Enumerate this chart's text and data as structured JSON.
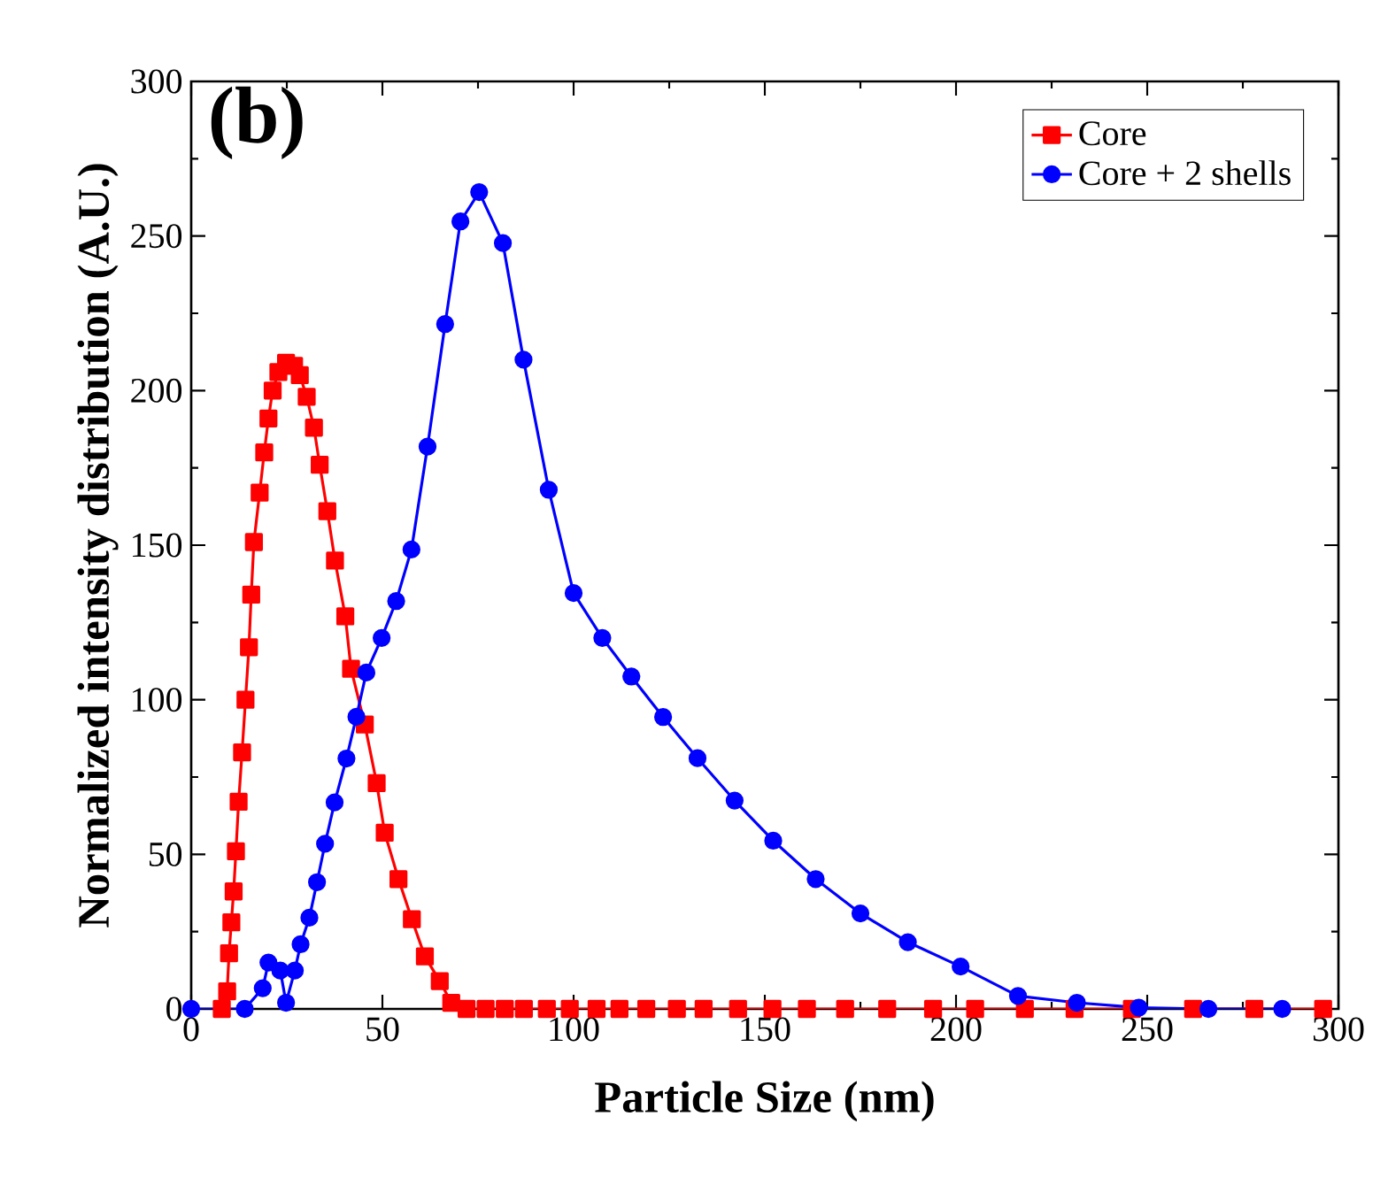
{
  "chart_data": {
    "type": "line",
    "xlabel": "Particle Size (nm)",
    "ylabel": "Normalized intensity distribution (A.U.)",
    "annotations": [
      "(b)"
    ],
    "xlim": [
      0,
      300
    ],
    "ylim": [
      0,
      300
    ],
    "xticks": [
      0,
      50,
      100,
      150,
      200,
      250,
      300
    ],
    "yticks": [
      0,
      50,
      100,
      150,
      200,
      250,
      300
    ],
    "legend": "top right",
    "line_style": "solid",
    "series": [
      {
        "name": "Core",
        "color": "#ff0000",
        "marker": "square",
        "x": [
          8,
          9.4,
          9.9,
          10.5,
          11.1,
          11.7,
          12.4,
          13.3,
          14.2,
          15.1,
          15.7,
          16.4,
          17.9,
          19.1,
          20.2,
          21.3,
          22.8,
          24.8,
          26.9,
          28.4,
          30.2,
          32.1,
          33.6,
          35.6,
          37.6,
          40.3,
          41.8,
          45.4,
          48.5,
          50.6,
          54.2,
          57.7,
          61.1,
          65,
          68,
          72,
          77,
          82,
          87,
          93,
          99,
          106,
          112,
          119,
          127,
          134,
          143,
          152,
          161,
          171,
          182,
          194,
          205,
          218,
          231,
          246,
          262,
          278,
          296
        ],
        "values": [
          0,
          5.7,
          18,
          28,
          38,
          51,
          67,
          83,
          100,
          117,
          134,
          151,
          167,
          180,
          191,
          200,
          206,
          209,
          208,
          205,
          198,
          188,
          176,
          161,
          145,
          127,
          110,
          92,
          73,
          57,
          42,
          29,
          17,
          9,
          2,
          0,
          0,
          0,
          0,
          0,
          0,
          0,
          0,
          0,
          0,
          0,
          0,
          0,
          0,
          0,
          0,
          0,
          0,
          0,
          0,
          0,
          0,
          0,
          0
        ]
      },
      {
        "name": "Core + 2 shells",
        "color": "#0000ff",
        "marker": "circle",
        "x": [
          0,
          14,
          18.7,
          20.2,
          23.3,
          24.8,
          27.1,
          28.6,
          30.9,
          32.9,
          35,
          37.5,
          40.6,
          43.2,
          45.8,
          49.8,
          53.6,
          57.6,
          61.8,
          66.4,
          70.4,
          75.3,
          81.5,
          86.9,
          93.5,
          100,
          107.5,
          115.1,
          123.4,
          132.4,
          142.1,
          152.2,
          163.3,
          175,
          187.4,
          201.2,
          216.2,
          231.6,
          247.8,
          266,
          285.3
        ],
        "values": [
          0,
          0,
          6.7,
          15,
          12.4,
          2,
          12.4,
          20.9,
          29.5,
          41,
          53.4,
          66.8,
          81,
          94.5,
          108.8,
          120,
          131.9,
          148.6,
          181.9,
          221.5,
          254.7,
          264.2,
          247.7,
          210,
          167.9,
          134.5,
          120,
          107.5,
          94.4,
          81.1,
          67.4,
          54.4,
          42,
          30.9,
          21.6,
          13.7,
          4.2,
          2,
          0.4,
          0,
          0
        ]
      }
    ]
  }
}
